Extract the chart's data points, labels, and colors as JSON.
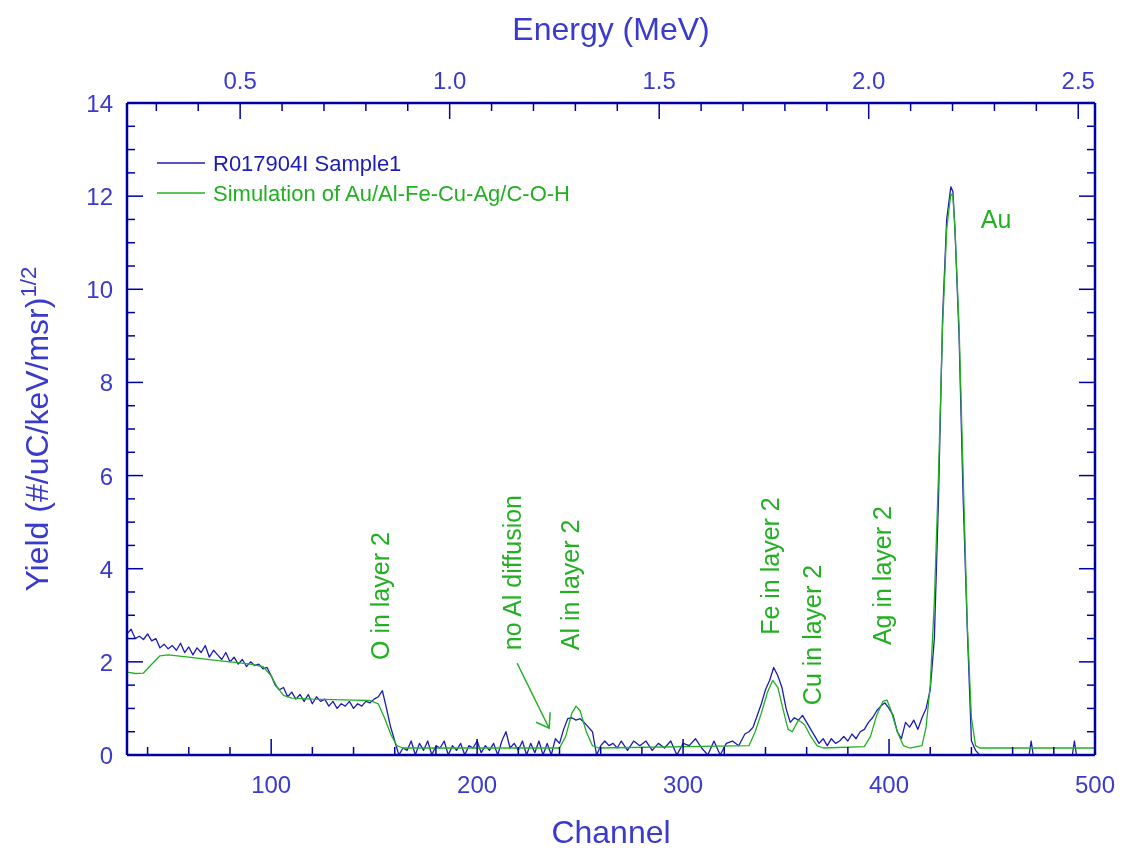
{
  "chart_data": {
    "type": "line",
    "xlabel": "Channel",
    "x2label": "Energy (MeV)",
    "ylabel": "Yield (#/uC/keV/msr)$^{1/2}$",
    "xlim": [
      30,
      500
    ],
    "xticks": [
      {
        "value": 40,
        "label": null
      },
      {
        "value": 60,
        "label": null
      },
      {
        "value": 80,
        "label": null
      },
      100,
      {
        "value": 120,
        "label": null
      },
      {
        "value": 140,
        "label": null
      },
      {
        "value": 160,
        "label": null
      },
      {
        "value": 180,
        "label": null
      },
      200,
      {
        "value": 220,
        "label": null
      },
      {
        "value": 240,
        "label": null
      },
      {
        "value": 260,
        "label": null
      },
      {
        "value": 280,
        "label": null
      },
      300,
      {
        "value": 320,
        "label": null
      },
      {
        "value": 340,
        "label": null
      },
      {
        "value": 360,
        "label": null
      },
      {
        "value": 380,
        "label": null
      },
      400,
      {
        "value": 420,
        "label": null
      },
      {
        "value": 440,
        "label": null
      },
      {
        "value": 460,
        "label": null
      },
      {
        "value": 480,
        "label": null
      },
      500
    ],
    "x2lim": [
      0.23,
      2.54
    ],
    "x2ticks": [
      {
        "value": 0.3,
        "label": null
      },
      {
        "value": 0.4,
        "label": null
      },
      {
        "value": 0.5,
        "label": "0.5"
      },
      {
        "value": 0.6,
        "label": null
      },
      {
        "value": 0.7,
        "label": null
      },
      {
        "value": 0.8,
        "label": null
      },
      {
        "value": 0.9,
        "label": null
      },
      {
        "value": 1.0,
        "label": "1.0"
      },
      {
        "value": 1.1,
        "label": null
      },
      {
        "value": 1.2,
        "label": null
      },
      {
        "value": 1.3,
        "label": null
      },
      {
        "value": 1.4,
        "label": null
      },
      {
        "value": 1.5,
        "label": "1.5"
      },
      {
        "value": 1.6,
        "label": null
      },
      {
        "value": 1.7,
        "label": null
      },
      {
        "value": 1.8,
        "label": null
      },
      {
        "value": 1.9,
        "label": null
      },
      {
        "value": 2.0,
        "label": "2.0"
      },
      {
        "value": 2.1,
        "label": null
      },
      {
        "value": 2.2,
        "label": null
      },
      {
        "value": 2.3,
        "label": null
      },
      {
        "value": 2.4,
        "label": null
      },
      {
        "value": 2.5,
        "label": "2.5"
      }
    ],
    "ylim": [
      0,
      14
    ],
    "yticks": [
      0,
      {
        "value": 0.5,
        "label": null
      },
      {
        "value": 1,
        "label": null
      },
      {
        "value": 1.5,
        "label": null
      },
      2,
      {
        "value": 2.5,
        "label": null
      },
      {
        "value": 3,
        "label": null
      },
      {
        "value": 3.5,
        "label": null
      },
      4,
      {
        "value": 4.5,
        "label": null
      },
      {
        "value": 5,
        "label": null
      },
      {
        "value": 5.5,
        "label": null
      },
      6,
      {
        "value": 6.5,
        "label": null
      },
      {
        "value": 7,
        "label": null
      },
      {
        "value": 7.5,
        "label": null
      },
      8,
      {
        "value": 8.5,
        "label": null
      },
      {
        "value": 9,
        "label": null
      },
      {
        "value": 9.5,
        "label": null
      },
      10,
      {
        "value": 10.5,
        "label": null
      },
      {
        "value": 11,
        "label": null
      },
      {
        "value": 11.5,
        "label": null
      },
      12,
      {
        "value": 12.5,
        "label": null
      },
      {
        "value": 13,
        "label": null
      },
      {
        "value": 13.5,
        "label": null
      },
      14
    ],
    "legend": "top left",
    "marker": "none",
    "line_style": "solid",
    "series": [
      {
        "name": "R017904I Sample1",
        "color": "#1c1cb4",
        "x": [
          30,
          32,
          34,
          36,
          38,
          40,
          42,
          44,
          46,
          48,
          50,
          52,
          54,
          56,
          58,
          60,
          62,
          64,
          66,
          68,
          70,
          72,
          74,
          76,
          78,
          80,
          82,
          84,
          86,
          88,
          90,
          92,
          94,
          96,
          98,
          100,
          102,
          104,
          106,
          108,
          110,
          112,
          114,
          116,
          118,
          120,
          122,
          124,
          126,
          128,
          130,
          132,
          134,
          136,
          138,
          140,
          142,
          144,
          146,
          148,
          150,
          152,
          154,
          156,
          158,
          160,
          162,
          164,
          166,
          168,
          170,
          172,
          174,
          176,
          178,
          180,
          182,
          184,
          186,
          188,
          190,
          192,
          194,
          196,
          198,
          200,
          202,
          204,
          206,
          208,
          210,
          212,
          214,
          216,
          218,
          220,
          222,
          224,
          226,
          228,
          230,
          232,
          234,
          236,
          238,
          240,
          242,
          244,
          246,
          248,
          250,
          252,
          254,
          256,
          258,
          260,
          262,
          264,
          266,
          268,
          270,
          273,
          276,
          279,
          282,
          285,
          288,
          291,
          294,
          297,
          300,
          303,
          306,
          309,
          312,
          315,
          318,
          321,
          324,
          327,
          330,
          332,
          334,
          336,
          338,
          340,
          342,
          344,
          346,
          348,
          350,
          352,
          354,
          356,
          358,
          360,
          362,
          364,
          366,
          368,
          370,
          372,
          374,
          376,
          378,
          380,
          382,
          384,
          386,
          388,
          390,
          392,
          394,
          396,
          398,
          400,
          402,
          404,
          406,
          408,
          410,
          412,
          414,
          416,
          418,
          420,
          422,
          424,
          426,
          428,
          430,
          431,
          432,
          434,
          436,
          438,
          440,
          442,
          444,
          468,
          469,
          470,
          489,
          490,
          491,
          500
        ],
        "values": [
          2.6,
          2.7,
          2.5,
          2.55,
          2.48,
          2.6,
          2.45,
          2.5,
          2.3,
          2.38,
          2.28,
          2.35,
          2.25,
          2.4,
          2.2,
          2.32,
          2.15,
          2.3,
          2.2,
          2.35,
          2.1,
          2.25,
          2.15,
          2.05,
          2.2,
          2.0,
          2.1,
          1.95,
          2.05,
          1.9,
          2.0,
          1.92,
          1.95,
          1.85,
          1.88,
          1.7,
          1.5,
          1.4,
          1.45,
          1.25,
          1.35,
          1.2,
          1.3,
          1.15,
          1.3,
          1.1,
          1.25,
          1.15,
          1.2,
          1.05,
          1.15,
          1.0,
          1.1,
          1.05,
          1.15,
          1.0,
          1.1,
          1.05,
          1.15,
          1.12,
          1.2,
          1.25,
          1.38,
          1.0,
          0.6,
          0.3,
          0.0,
          0.15,
          0.1,
          0.3,
          0.0,
          0.25,
          0.1,
          0.3,
          0.0,
          0.2,
          0.15,
          0.3,
          0.0,
          0.2,
          0.1,
          0.25,
          0.0,
          0.2,
          0.15,
          0.3,
          0.05,
          0.2,
          0.1,
          0.25,
          0.0,
          0.3,
          0.5,
          0.15,
          0.25,
          0.1,
          0.3,
          0.0,
          0.25,
          0.05,
          0.3,
          0.0,
          0.25,
          0.0,
          0.35,
          0.25,
          0.55,
          0.78,
          0.8,
          0.75,
          0.78,
          0.7,
          0.6,
          0.5,
          0.0,
          0.2,
          0.3,
          0.2,
          0.25,
          0.15,
          0.3,
          0.1,
          0.3,
          0.2,
          0.3,
          0.1,
          0.25,
          0.15,
          0.3,
          0.0,
          0.25,
          0.2,
          0.35,
          0.15,
          0.0,
          0.3,
          0.0,
          0.25,
          0.3,
          0.2,
          0.45,
          0.5,
          0.6,
          0.85,
          1.1,
          1.4,
          1.6,
          1.88,
          1.7,
          1.45,
          1.0,
          0.7,
          0.8,
          0.75,
          0.85,
          0.7,
          0.55,
          0.4,
          0.25,
          0.35,
          0.2,
          0.35,
          0.25,
          0.3,
          0.4,
          0.3,
          0.45,
          0.35,
          0.5,
          0.55,
          0.7,
          0.8,
          0.95,
          1.05,
          1.12,
          1.0,
          0.85,
          0.5,
          0.35,
          0.7,
          0.6,
          0.75,
          0.55,
          0.8,
          1.0,
          1.4,
          2.5,
          5.5,
          9.4,
          11.5,
          12.2,
          12.1,
          11.3,
          9.0,
          5.5,
          2.7,
          0.3,
          0.1,
          0.0,
          0.0,
          0.3,
          0.0,
          0.0,
          0.3,
          0.0,
          0.0
        ]
      },
      {
        "name": "Simulation of Au/Al-Fe-Cu-Ag/C-O-H",
        "color": "#22b022",
        "x": [
          30,
          34,
          38,
          42,
          46,
          50,
          60,
          70,
          80,
          90,
          96,
          100,
          103,
          106,
          110,
          120,
          130,
          140,
          148,
          152,
          155,
          158,
          161,
          164,
          240,
          243,
          246,
          248,
          250,
          253,
          256,
          259,
          332,
          335,
          338,
          341,
          343.5,
          346,
          349,
          351,
          353,
          356,
          359,
          362,
          365,
          368,
          388,
          391,
          394,
          397,
          399,
          401,
          404,
          407,
          410,
          416,
          418,
          420,
          422,
          424,
          426,
          428,
          430,
          431,
          432,
          434,
          436,
          438,
          440,
          442,
          444,
          500
        ],
        "values": [
          1.78,
          1.75,
          1.76,
          1.95,
          2.13,
          2.15,
          2.1,
          2.05,
          2.0,
          1.95,
          1.9,
          1.7,
          1.45,
          1.28,
          1.22,
          1.2,
          1.19,
          1.18,
          1.17,
          1.1,
          0.8,
          0.45,
          0.2,
          0.15,
          0.15,
          0.4,
          0.9,
          1.05,
          0.95,
          0.5,
          0.2,
          0.15,
          0.2,
          0.5,
          0.9,
          1.35,
          1.6,
          1.45,
          0.9,
          0.55,
          0.5,
          0.75,
          0.65,
          0.4,
          0.2,
          0.15,
          0.18,
          0.4,
          0.85,
          1.15,
          1.18,
          0.95,
          0.5,
          0.2,
          0.15,
          0.2,
          0.6,
          1.5,
          3.3,
          6.0,
          9.2,
          11.3,
          12.05,
          12.0,
          11.3,
          9.2,
          6.0,
          2.8,
          0.8,
          0.2,
          0.15,
          0.15
        ]
      }
    ],
    "annotations": [
      "O in layer 2",
      "no Al diffusion",
      "Al in layer 2",
      "Fe in layer 2",
      "Cu in layer 2",
      "Ag in layer 2",
      "Au"
    ]
  }
}
